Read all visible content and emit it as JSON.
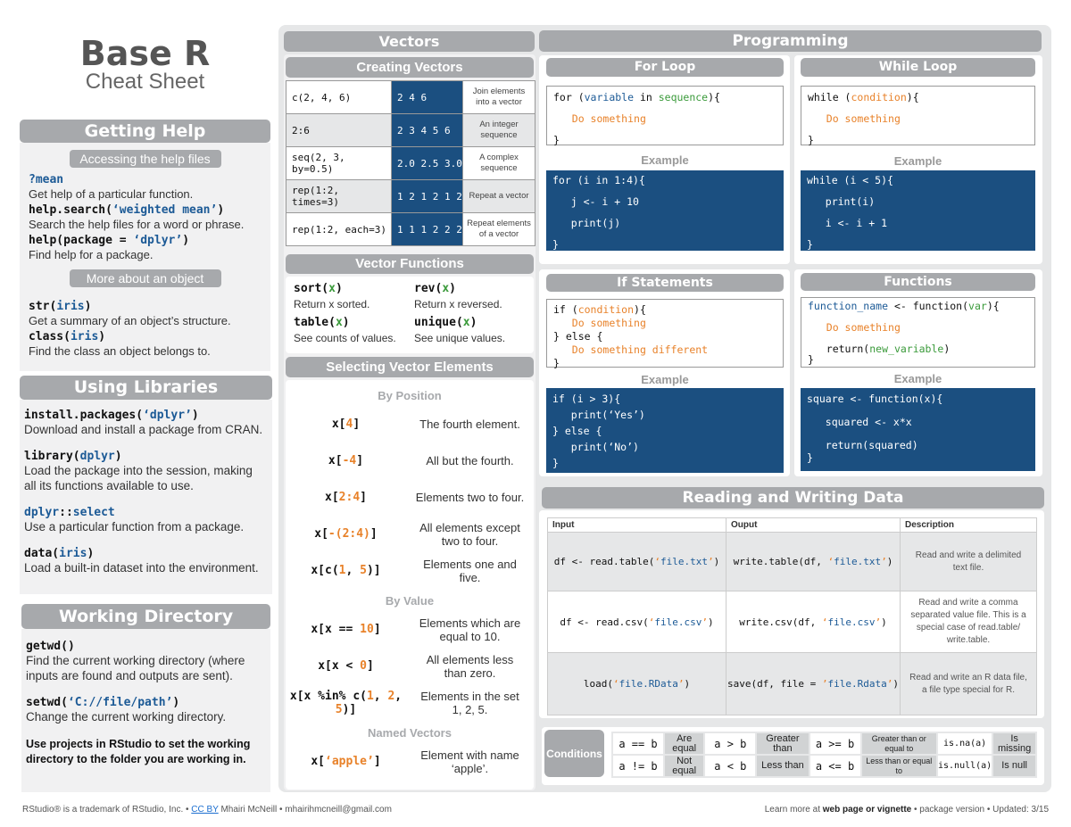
{
  "title": {
    "main": "Base R",
    "sub": "Cheat Sheet"
  },
  "getting_help": {
    "header": "Getting Help",
    "sub1": "Accessing the help files",
    "items1": [
      {
        "code": [
          [
            "?mean",
            "b"
          ]
        ],
        "desc": "Get help of a particular function."
      },
      {
        "code": [
          [
            "help.search(",
            ""
          ],
          [
            "‘weighted mean’",
            "b"
          ],
          [
            ")",
            ""
          ]
        ],
        "desc": "Search the help files for a word or phrase."
      },
      {
        "code": [
          [
            "help(package = ",
            ""
          ],
          [
            "‘dplyr’",
            "b"
          ],
          [
            ")",
            ""
          ]
        ],
        "desc": "Find help for a package."
      }
    ],
    "sub2": "More about an object",
    "items2": [
      {
        "code": [
          [
            "str(",
            ""
          ],
          [
            "iris",
            "b"
          ],
          [
            ")",
            ""
          ]
        ],
        "desc": "Get a summary of an object’s structure."
      },
      {
        "code": [
          [
            "class(",
            ""
          ],
          [
            "iris",
            "b"
          ],
          [
            ")",
            ""
          ]
        ],
        "desc": "Find the class an object belongs to."
      }
    ]
  },
  "libraries": {
    "header": "Using Libraries",
    "items": [
      {
        "code": [
          [
            "install.packages(",
            ""
          ],
          [
            "‘dplyr’",
            "b"
          ],
          [
            ")",
            ""
          ]
        ],
        "desc": "Download and install a package from CRAN."
      },
      {
        "code": [
          [
            "library(",
            ""
          ],
          [
            "dplyr",
            "b"
          ],
          [
            ")",
            ""
          ]
        ],
        "desc": "Load the package into the session, making all its functions available to use."
      },
      {
        "code": [
          [
            "dplyr",
            "b"
          ],
          [
            "::",
            ""
          ],
          [
            "select",
            "b"
          ]
        ],
        "desc": "Use a particular function from a package."
      },
      {
        "code": [
          [
            "data(",
            ""
          ],
          [
            "iris",
            "b"
          ],
          [
            ")",
            ""
          ]
        ],
        "desc": "Load a built-in dataset into the environment."
      }
    ]
  },
  "working_dir": {
    "header": "Working Directory",
    "items": [
      {
        "code": [
          [
            "getwd()",
            ""
          ]
        ],
        "desc": "Find the current working directory (where inputs are found and outputs are sent)."
      },
      {
        "code": [
          [
            "setwd(",
            ""
          ],
          [
            "‘C://file/path’",
            "b"
          ],
          [
            ")",
            ""
          ]
        ],
        "desc": "Change the current working directory."
      }
    ],
    "note": "Use projects in RStudio to set the working directory to the folder you are working in."
  },
  "vectors": {
    "header": "Vectors",
    "creating": {
      "header": "Creating Vectors",
      "rows": [
        {
          "code": "c(2, 4, 6)",
          "result": "2 4 6",
          "desc": "Join elements into a vector"
        },
        {
          "code": "2:6",
          "result": "2 3 4 5 6",
          "desc": "An integer sequence"
        },
        {
          "code": "seq(2, 3, by=0.5)",
          "result": "2.0 2.5 3.0",
          "desc": "A complex sequence"
        },
        {
          "code": "rep(1:2, times=3)",
          "result": "1 2 1 2 1 2",
          "desc": "Repeat a vector"
        },
        {
          "code": "rep(1:2, each=3)",
          "result": "1 1 1 2 2 2",
          "desc": "Repeat elements of a vector"
        }
      ]
    },
    "functions": {
      "header": "Vector Functions",
      "items": [
        {
          "code": [
            [
              "sort(",
              ""
            ],
            [
              "x",
              "g"
            ],
            [
              ")",
              ""
            ]
          ],
          "desc": "Return x sorted."
        },
        {
          "code": [
            [
              "rev(",
              ""
            ],
            [
              "x",
              "g"
            ],
            [
              ")",
              ""
            ]
          ],
          "desc": "Return x reversed."
        },
        {
          "code": [
            [
              "table(",
              ""
            ],
            [
              "x",
              "g"
            ],
            [
              ")",
              ""
            ]
          ],
          "desc": "See counts of values."
        },
        {
          "code": [
            [
              "unique(",
              ""
            ],
            [
              "x",
              "g"
            ],
            [
              ")",
              ""
            ]
          ],
          "desc": "See unique values."
        }
      ]
    },
    "selecting": {
      "header": "Selecting Vector Elements",
      "groups": [
        {
          "label": "By Position",
          "rows": [
            {
              "code": [
                [
                  "x[",
                  ""
                ],
                [
                  "4",
                  "o"
                ],
                [
                  "]",
                  ""
                ]
              ],
              "desc": "The fourth element."
            },
            {
              "code": [
                [
                  "x[",
                  ""
                ],
                [
                  "-4",
                  "o"
                ],
                [
                  "]",
                  ""
                ]
              ],
              "desc": "All but the fourth."
            },
            {
              "code": [
                [
                  "x[",
                  ""
                ],
                [
                  "2:4",
                  "o"
                ],
                [
                  "]",
                  ""
                ]
              ],
              "desc": "Elements two to four."
            },
            {
              "code": [
                [
                  "x[",
                  ""
                ],
                [
                  "-(2:4)",
                  "o"
                ],
                [
                  "]",
                  ""
                ]
              ],
              "desc": "All elements except two to four."
            },
            {
              "code": [
                [
                  "x[c(",
                  ""
                ],
                [
                  "1",
                  "o"
                ],
                [
                  ", ",
                  ""
                ],
                [
                  "5",
                  "o"
                ],
                [
                  ")]",
                  ""
                ]
              ],
              "desc": "Elements one and five."
            }
          ]
        },
        {
          "label": "By Value",
          "rows": [
            {
              "code": [
                [
                  "x[x == ",
                  ""
                ],
                [
                  "10",
                  "o"
                ],
                [
                  "]",
                  ""
                ]
              ],
              "desc": "Elements which are equal to 10."
            },
            {
              "code": [
                [
                  "x[x < ",
                  ""
                ],
                [
                  "0",
                  "o"
                ],
                [
                  "]",
                  ""
                ]
              ],
              "desc": "All elements less than zero."
            },
            {
              "code": [
                [
                  "x[x %in% c(",
                  ""
                ],
                [
                  "1",
                  "o"
                ],
                [
                  ", ",
                  ""
                ],
                [
                  "2",
                  "o"
                ],
                [
                  ", ",
                  ""
                ],
                [
                  "5",
                  "o"
                ],
                [
                  ")]",
                  ""
                ]
              ],
              "desc": "Elements in the set 1, 2, 5."
            }
          ]
        },
        {
          "label": "Named Vectors",
          "rows": [
            {
              "code": [
                [
                  "x[",
                  ""
                ],
                [
                  "‘apple’",
                  "o"
                ],
                [
                  "]",
                  ""
                ]
              ],
              "desc": "Element with name ‘apple’."
            }
          ]
        }
      ]
    }
  },
  "programming": {
    "header": "Programming",
    "example_label": "Example",
    "for_loop": {
      "header": "For Loop",
      "code": [
        [
          [
            "for (",
            ""
          ],
          [
            "variable",
            "b"
          ],
          [
            " in ",
            ""
          ],
          [
            "sequence",
            "g"
          ],
          [
            "){",
            ""
          ]
        ],
        [
          [
            "",
            ""
          ]
        ],
        [
          [
            "   ",
            ""
          ],
          [
            "Do something",
            "o"
          ]
        ],
        [
          [
            "",
            ""
          ]
        ],
        [
          [
            "}",
            ""
          ]
        ]
      ],
      "example": [
        "for (i in 1:4){",
        "",
        "   j <- i + 10",
        "",
        "   print(j)",
        "",
        "}"
      ]
    },
    "while_loop": {
      "header": "While Loop",
      "code": [
        [
          [
            "while (",
            ""
          ],
          [
            "condition",
            "r"
          ],
          [
            "){",
            ""
          ]
        ],
        [
          [
            "",
            ""
          ]
        ],
        [
          [
            "   ",
            ""
          ],
          [
            "Do something",
            "o"
          ]
        ],
        [
          [
            "",
            ""
          ]
        ],
        [
          [
            "}",
            ""
          ]
        ]
      ],
      "example": [
        "while (i < 5){",
        "",
        "   print(i)",
        "",
        "   i <- i + 1",
        "",
        "}"
      ]
    },
    "if_statements": {
      "header": "If Statements",
      "code": [
        [
          [
            "if (",
            ""
          ],
          [
            "condition",
            "r"
          ],
          [
            "){",
            ""
          ]
        ],
        [
          [
            "   ",
            ""
          ],
          [
            "Do something",
            "o"
          ]
        ],
        [
          [
            "} else {",
            ""
          ]
        ],
        [
          [
            "   ",
            ""
          ],
          [
            "Do something different",
            "o"
          ]
        ],
        [
          [
            "}",
            ""
          ]
        ]
      ],
      "example": [
        "if (i > 3){",
        "   print(‘Yes’)",
        "} else {",
        "   print(‘No’)",
        "}"
      ]
    },
    "functions": {
      "header": "Functions",
      "code": [
        [
          [
            "function_name",
            "b"
          ],
          [
            " <- function(",
            ""
          ],
          [
            "var",
            "g"
          ],
          [
            "){",
            ""
          ]
        ],
        [
          [
            "",
            ""
          ]
        ],
        [
          [
            "   ",
            ""
          ],
          [
            "Do something",
            "o"
          ]
        ],
        [
          [
            "",
            ""
          ]
        ],
        [
          [
            "   return(",
            ""
          ],
          [
            "new_variable",
            "g"
          ],
          [
            ")",
            ""
          ]
        ],
        [
          [
            "}",
            ""
          ]
        ]
      ],
      "example": [
        "square <- function(x){",
        "",
        "   squared <- x*x",
        "",
        "   return(squared)",
        "}"
      ]
    }
  },
  "io": {
    "header": "Reading and Writing Data",
    "columns": [
      "Input",
      "Ouput",
      "Description"
    ],
    "rows": [
      {
        "input": [
          [
            "df <- read.table(",
            ""
          ],
          [
            "‘",
            "o"
          ],
          [
            "file.txt",
            "b"
          ],
          [
            "’",
            "o"
          ],
          [
            ")",
            ""
          ]
        ],
        "output": [
          [
            "write.table(df, ",
            ""
          ],
          [
            "‘",
            "o"
          ],
          [
            "file.txt",
            "b"
          ],
          [
            "’",
            "o"
          ],
          [
            ")",
            ""
          ]
        ],
        "desc": "Read and write a delimited text file."
      },
      {
        "input": [
          [
            "df <- read.csv(",
            ""
          ],
          [
            "‘",
            "o"
          ],
          [
            "file.csv",
            "b"
          ],
          [
            "’",
            "o"
          ],
          [
            ")",
            ""
          ]
        ],
        "output": [
          [
            "write.csv(df, ",
            ""
          ],
          [
            "‘",
            "o"
          ],
          [
            "file.csv",
            "b"
          ],
          [
            "’",
            "o"
          ],
          [
            ")",
            ""
          ]
        ],
        "desc": "Read and write a comma separated value file. This is a special case of read.table/ write.table."
      },
      {
        "input": [
          [
            "load(",
            ""
          ],
          [
            "‘",
            "o"
          ],
          [
            "file.RData",
            "b"
          ],
          [
            "’",
            "o"
          ],
          [
            ")",
            ""
          ]
        ],
        "output": [
          [
            "save(df, file = ",
            ""
          ],
          [
            "’",
            "o"
          ],
          [
            "file.Rdata",
            "b"
          ],
          [
            "’",
            "o"
          ],
          [
            ")",
            ""
          ]
        ],
        "desc": "Read and write an R data file, a file type special for R."
      }
    ]
  },
  "conditions": {
    "label": "Conditions",
    "rows": [
      [
        {
          "code": "a == b",
          "desc": "Are equal"
        },
        {
          "code": "a > b",
          "desc": "Greater than"
        },
        {
          "code": "a >= b",
          "desc": "Greater than or equal to"
        },
        {
          "code": "is.na(a)",
          "desc": "Is missing"
        }
      ],
      [
        {
          "code": "a != b",
          "desc": "Not equal"
        },
        {
          "code": "a < b",
          "desc": "Less than"
        },
        {
          "code": "a <= b",
          "desc": "Less than or equal to"
        },
        {
          "code": "is.null(a)",
          "desc": "Is null"
        }
      ]
    ]
  },
  "footer": {
    "left_pre": "RStudio® is a trademark of RStudio, Inc.  •  ",
    "cc": "CC BY",
    "left_post": " Mhairi McNeill  •  mhairihmcneill@gmail.com",
    "right_pre": "Learn more at ",
    "right_link": "web page or vignette",
    "right_post": "  •  package version  •  Updated: 3/15"
  },
  "colors": {
    "accent_blue": "#1b4f80",
    "header_gray": "#a7a9ac",
    "arg_blue": "#1c5a96",
    "green": "#3a9a3a",
    "orange": "#e8822a"
  }
}
